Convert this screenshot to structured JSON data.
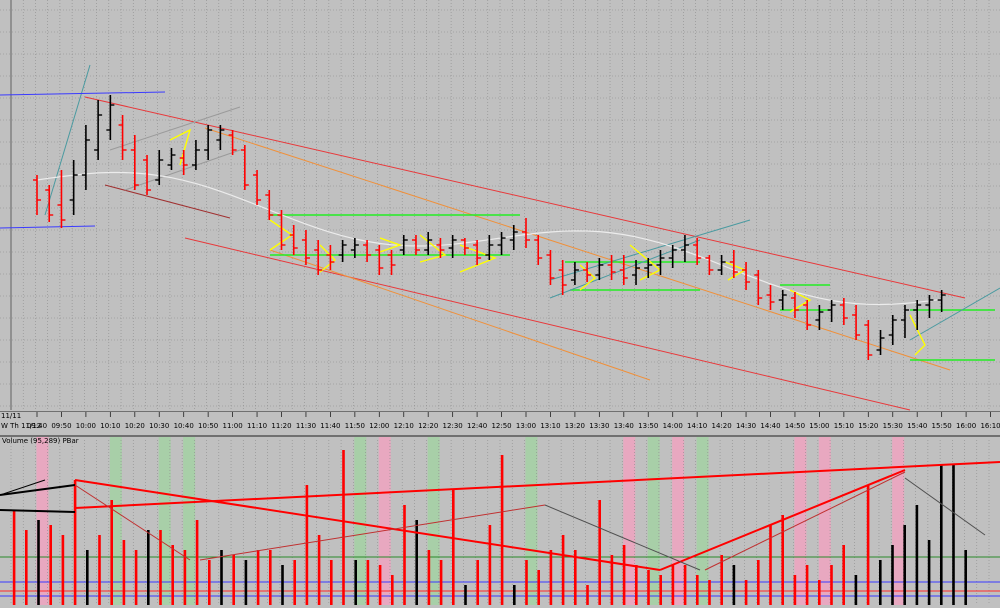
{
  "colors": {
    "background": "#c0c0c0",
    "grid": "#8a8a8a",
    "up_bar": "#000000",
    "down_bar": "#ff0000",
    "channel_red": "#e8383a",
    "channel_orange": "#f0903a",
    "channel_teal": "#4a9aa0",
    "channel_blue": "#3a3aff",
    "support_green": "#22ee22",
    "triangle_yellow": "#ffff00",
    "moving_average": "#ececec",
    "highlight_green": "#a8cfa8",
    "highlight_pink": "#e8a8c0"
  },
  "chart_data": [
    {
      "type": "candlestick",
      "date_labels": {
        "top": "11/11",
        "bottom": "W  Th 11/12"
      },
      "x_tick_labels": [
        "09:40",
        "09:50",
        "10:00",
        "10:10",
        "10:20",
        "10:30",
        "10:40",
        "10:50",
        "11:00",
        "11:10",
        "11:20",
        "11:30",
        "11:40",
        "11:50",
        "12:00",
        "12:10",
        "12:20",
        "12:30",
        "12:40",
        "12:50",
        "13:00",
        "13:10",
        "13:20",
        "13:30",
        "13:40",
        "13:50",
        "14:00",
        "14:10",
        "14:20",
        "14:30",
        "14:40",
        "14:50",
        "15:00",
        "15:10",
        "15:20",
        "15:30",
        "15:40",
        "15:50",
        "16:00",
        "16:10"
      ],
      "grid": true
    },
    {
      "type": "bar",
      "label": "Volume (95,289)  PBar",
      "grid": true,
      "highlighted_green_bars": [
        4,
        6,
        7,
        14,
        17,
        21,
        26,
        28
      ],
      "highlighted_pink_bars": [
        1,
        15,
        25,
        27,
        32,
        33,
        36
      ]
    }
  ]
}
